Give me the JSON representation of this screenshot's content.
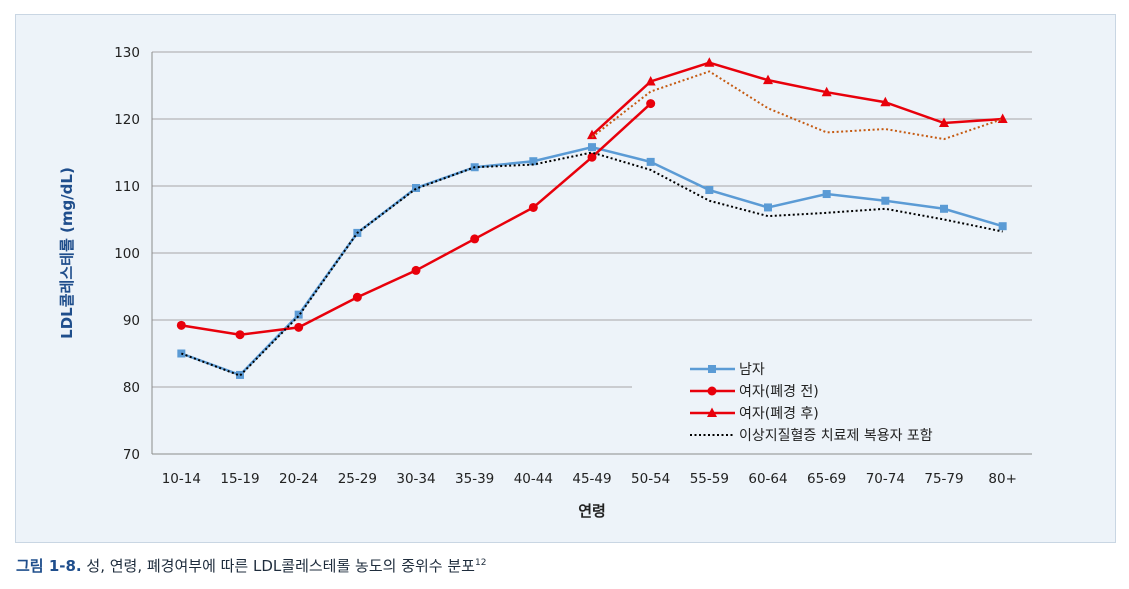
{
  "chart_data": {
    "type": "line",
    "xlabel": "연령",
    "ylabel": "LDL콜레스테롤 (mg/dL)",
    "ylim": [
      70,
      130
    ],
    "yticks": [
      70,
      80,
      90,
      100,
      110,
      120,
      130
    ],
    "grid": "horizontal",
    "legend_position": "bottom-right",
    "categories": [
      "10-14",
      "15-19",
      "20-24",
      "25-29",
      "30-34",
      "35-39",
      "40-44",
      "45-49",
      "50-54",
      "55-59",
      "60-64",
      "65-69",
      "70-74",
      "75-79",
      "80+"
    ],
    "series": [
      {
        "name": "남자",
        "color": "#5b9bd5",
        "marker": "square",
        "line": "solid",
        "values": [
          85.0,
          81.8,
          90.8,
          103.0,
          109.7,
          112.8,
          113.7,
          115.8,
          113.6,
          109.4,
          106.8,
          108.8,
          107.8,
          106.6,
          104.0
        ]
      },
      {
        "name": "여자(폐경 전)",
        "color": "#e8000b",
        "marker": "circle",
        "line": "solid",
        "values": [
          89.2,
          87.8,
          88.9,
          93.4,
          97.4,
          102.1,
          106.8,
          114.3,
          122.3,
          null,
          null,
          null,
          null,
          null,
          null
        ]
      },
      {
        "name": "여자(폐경 후)",
        "color": "#e8000b",
        "marker": "triangle",
        "line": "solid",
        "values": [
          null,
          null,
          null,
          null,
          null,
          null,
          null,
          117.6,
          125.6,
          128.4,
          125.8,
          124.0,
          122.5,
          119.4,
          120.0
        ]
      },
      {
        "name": "이상지질혈증 치료제 복용자 포함",
        "color": "#000000",
        "marker": "none",
        "line": "dotted",
        "values": [
          85.0,
          81.7,
          90.6,
          103.0,
          109.6,
          112.8,
          113.2,
          115.0,
          112.4,
          107.8,
          105.5,
          106.0,
          106.6,
          105.0,
          103.2
        ]
      },
      {
        "name": "",
        "color": "#c55a11",
        "marker": "none",
        "line": "dotted",
        "values": [
          null,
          null,
          null,
          null,
          null,
          null,
          null,
          117.3,
          124.1,
          127.1,
          121.6,
          118.0,
          118.5,
          117.0,
          120.0
        ]
      }
    ]
  },
  "caption": {
    "label": "그림 1-8.",
    "text": " 성, 연령, 폐경여부에 따른 LDL콜레스테롤 농도의 중위수 분포",
    "superscript": "12"
  },
  "colors": {
    "background": "#edf3f9",
    "grid": "#a6a6a6",
    "axis_title": "#1f4e8c"
  }
}
